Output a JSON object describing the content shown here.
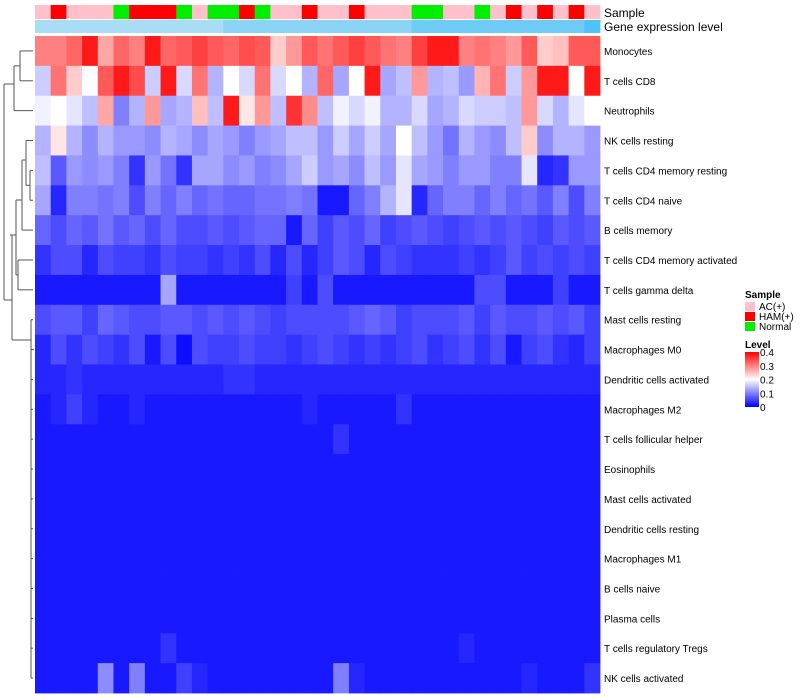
{
  "chart_data": {
    "type": "heatmap",
    "title": "",
    "value_range": [
      0,
      0.4
    ],
    "annotation_tracks": [
      "Sample",
      "Gene expression level"
    ],
    "rows": [
      "Monocytes",
      "T cells CD8",
      "Neutrophils",
      "NK cells resting",
      "T cells CD4 memory resting",
      "T cells CD4 naive",
      "B cells memory",
      "T cells CD4 memory activated",
      "T cells gamma delta",
      "Mast cells resting",
      "Macrophages M0",
      "Dendritic cells activated",
      "Macrophages M2",
      "T cells follicular helper",
      "Eosinophils",
      "Mast cells activated",
      "Dendritic cells resting",
      "Macrophages M1",
      "B cells naive",
      "Plasma cells",
      "T cells regulatory  Tregs",
      "NK cells activated"
    ],
    "sample_groups": [
      "AC",
      "HAM",
      "AC",
      "AC",
      "AC",
      "Normal",
      "HAM",
      "HAM",
      "HAM",
      "Normal",
      "AC",
      "Normal",
      "Normal",
      "HAM",
      "Normal",
      "AC",
      "AC",
      "HAM",
      "AC",
      "AC",
      "HAM",
      "AC",
      "AC",
      "AC",
      "Normal",
      "Normal",
      "AC",
      "AC",
      "Normal",
      "AC",
      "HAM",
      "AC",
      "HAM",
      "AC",
      "HAM",
      "AC"
    ],
    "expression_level_track": [
      0.4,
      0.4,
      0.4,
      0.4,
      0.4,
      0.4,
      0.4,
      0.4,
      0.4,
      0.4,
      0.4,
      0.4,
      0.45,
      0.45,
      0.45,
      0.45,
      0.45,
      0.45,
      0.45,
      0.45,
      0.45,
      0.45,
      0.45,
      0.45,
      0.5,
      0.5,
      0.5,
      0.5,
      0.5,
      0.5,
      0.5,
      0.5,
      0.5,
      0.5,
      0.5,
      0.55
    ],
    "values": [
      [
        0.3,
        0.3,
        0.32,
        0.38,
        0.27,
        0.32,
        0.3,
        0.38,
        0.32,
        0.33,
        0.35,
        0.33,
        0.32,
        0.34,
        0.33,
        0.24,
        0.28,
        0.33,
        0.31,
        0.33,
        0.35,
        0.33,
        0.31,
        0.3,
        0.35,
        0.38,
        0.38,
        0.3,
        0.31,
        0.3,
        0.28,
        0.33,
        0.24,
        0.25,
        0.33,
        0.33
      ],
      [
        0.16,
        0.31,
        0.24,
        0.2,
        0.33,
        0.38,
        0.34,
        0.16,
        0.38,
        0.17,
        0.31,
        0.14,
        0.2,
        0.17,
        0.31,
        0.17,
        0.2,
        0.14,
        0.32,
        0.13,
        0.2,
        0.38,
        0.13,
        0.15,
        0.28,
        0.14,
        0.15,
        0.12,
        0.26,
        0.31,
        0.16,
        0.28,
        0.38,
        0.38,
        0.2,
        0.38
      ],
      [
        0.19,
        0.2,
        0.18,
        0.15,
        0.27,
        0.1,
        0.14,
        0.28,
        0.13,
        0.14,
        0.25,
        0.15,
        0.38,
        0.22,
        0.28,
        0.15,
        0.36,
        0.29,
        0.15,
        0.19,
        0.17,
        0.19,
        0.14,
        0.14,
        0.17,
        0.13,
        0.14,
        0.17,
        0.16,
        0.16,
        0.15,
        0.28,
        0.17,
        0.14,
        0.18,
        0.2
      ],
      [
        0.14,
        0.22,
        0.14,
        0.11,
        0.14,
        0.12,
        0.12,
        0.11,
        0.14,
        0.13,
        0.11,
        0.13,
        0.12,
        0.1,
        0.12,
        0.13,
        0.15,
        0.15,
        0.12,
        0.16,
        0.13,
        0.16,
        0.13,
        0.2,
        0.15,
        0.12,
        0.09,
        0.14,
        0.12,
        0.11,
        0.15,
        0.24,
        0.11,
        0.14,
        0.14,
        0.12
      ],
      [
        0.15,
        0.07,
        0.12,
        0.11,
        0.12,
        0.1,
        0.04,
        0.12,
        0.09,
        0.04,
        0.13,
        0.13,
        0.11,
        0.12,
        0.1,
        0.11,
        0.13,
        0.16,
        0.12,
        0.13,
        0.11,
        0.15,
        0.12,
        0.18,
        0.13,
        0.12,
        0.1,
        0.12,
        0.12,
        0.1,
        0.1,
        0.18,
        0.03,
        0.04,
        0.12,
        0.12
      ],
      [
        0.13,
        0.03,
        0.1,
        0.1,
        0.09,
        0.1,
        0.06,
        0.1,
        0.08,
        0.1,
        0.08,
        0.09,
        0.08,
        0.08,
        0.09,
        0.09,
        0.1,
        0.09,
        0.02,
        0.02,
        0.08,
        0.1,
        0.14,
        0.18,
        0.03,
        0.08,
        0.1,
        0.1,
        0.08,
        0.1,
        0.08,
        0.09,
        0.07,
        0.1,
        0.06,
        0.1
      ],
      [
        0.08,
        0.06,
        0.08,
        0.07,
        0.09,
        0.07,
        0.08,
        0.06,
        0.08,
        0.06,
        0.06,
        0.07,
        0.06,
        0.07,
        0.08,
        0.08,
        0.02,
        0.08,
        0.05,
        0.07,
        0.06,
        0.08,
        0.05,
        0.06,
        0.07,
        0.06,
        0.05,
        0.06,
        0.07,
        0.06,
        0.07,
        0.06,
        0.05,
        0.07,
        0.06,
        0.07
      ],
      [
        0.04,
        0.06,
        0.06,
        0.03,
        0.06,
        0.05,
        0.05,
        0.04,
        0.06,
        0.05,
        0.05,
        0.04,
        0.05,
        0.04,
        0.06,
        0.03,
        0.06,
        0.03,
        0.05,
        0.07,
        0.06,
        0.03,
        0.06,
        0.05,
        0.04,
        0.04,
        0.04,
        0.05,
        0.04,
        0.05,
        0.07,
        0.05,
        0.06,
        0.05,
        0.06,
        0.05
      ],
      [
        0.02,
        0.02,
        0.02,
        0.02,
        0.02,
        0.02,
        0.02,
        0.02,
        0.13,
        0.02,
        0.02,
        0.02,
        0.02,
        0.02,
        0.02,
        0.02,
        0.05,
        0.02,
        0.06,
        0.02,
        0.02,
        0.02,
        0.02,
        0.02,
        0.02,
        0.02,
        0.02,
        0.02,
        0.06,
        0.06,
        0.02,
        0.02,
        0.02,
        0.05,
        0.02,
        0.02
      ],
      [
        0.06,
        0.07,
        0.07,
        0.05,
        0.08,
        0.07,
        0.06,
        0.06,
        0.07,
        0.07,
        0.06,
        0.07,
        0.06,
        0.07,
        0.06,
        0.05,
        0.06,
        0.06,
        0.06,
        0.06,
        0.07,
        0.08,
        0.07,
        0.05,
        0.06,
        0.06,
        0.06,
        0.07,
        0.05,
        0.07,
        0.06,
        0.06,
        0.07,
        0.06,
        0.07,
        0.05
      ],
      [
        0.03,
        0.06,
        0.04,
        0.06,
        0.05,
        0.04,
        0.06,
        0.02,
        0.06,
        0.01,
        0.06,
        0.05,
        0.05,
        0.06,
        0.05,
        0.05,
        0.04,
        0.05,
        0.06,
        0.05,
        0.04,
        0.05,
        0.04,
        0.05,
        0.06,
        0.04,
        0.05,
        0.06,
        0.04,
        0.06,
        0.02,
        0.05,
        0.06,
        0.04,
        0.03,
        0.05
      ],
      [
        0.03,
        0.03,
        0.04,
        0.03,
        0.03,
        0.03,
        0.03,
        0.03,
        0.03,
        0.03,
        0.03,
        0.03,
        0.04,
        0.04,
        0.03,
        0.03,
        0.03,
        0.03,
        0.03,
        0.03,
        0.03,
        0.03,
        0.03,
        0.03,
        0.03,
        0.03,
        0.03,
        0.03,
        0.03,
        0.03,
        0.03,
        0.03,
        0.03,
        0.03,
        0.03,
        0.03
      ],
      [
        0.02,
        0.03,
        0.05,
        0.03,
        0.02,
        0.02,
        0.03,
        0.02,
        0.02,
        0.02,
        0.02,
        0.02,
        0.02,
        0.02,
        0.02,
        0.02,
        0.02,
        0.03,
        0.02,
        0.02,
        0.02,
        0.02,
        0.02,
        0.04,
        0.02,
        0.02,
        0.02,
        0.02,
        0.02,
        0.02,
        0.02,
        0.02,
        0.02,
        0.02,
        0.02,
        0.02
      ],
      [
        0.02,
        0.02,
        0.02,
        0.02,
        0.02,
        0.02,
        0.02,
        0.02,
        0.02,
        0.02,
        0.02,
        0.02,
        0.02,
        0.02,
        0.02,
        0.02,
        0.02,
        0.02,
        0.02,
        0.04,
        0.02,
        0.02,
        0.02,
        0.02,
        0.02,
        0.02,
        0.02,
        0.02,
        0.02,
        0.02,
        0.02,
        0.02,
        0.02,
        0.02,
        0.02,
        0.02
      ],
      [
        0.02,
        0.02,
        0.02,
        0.02,
        0.02,
        0.02,
        0.02,
        0.02,
        0.02,
        0.02,
        0.02,
        0.02,
        0.02,
        0.02,
        0.02,
        0.02,
        0.02,
        0.02,
        0.02,
        0.02,
        0.02,
        0.02,
        0.02,
        0.02,
        0.02,
        0.02,
        0.02,
        0.02,
        0.02,
        0.02,
        0.02,
        0.02,
        0.02,
        0.02,
        0.02,
        0.02
      ],
      [
        0.02,
        0.02,
        0.02,
        0.02,
        0.02,
        0.02,
        0.02,
        0.02,
        0.02,
        0.02,
        0.02,
        0.02,
        0.02,
        0.02,
        0.02,
        0.02,
        0.02,
        0.02,
        0.02,
        0.02,
        0.02,
        0.02,
        0.02,
        0.02,
        0.02,
        0.02,
        0.02,
        0.02,
        0.02,
        0.02,
        0.02,
        0.02,
        0.02,
        0.02,
        0.02,
        0.02
      ],
      [
        0.02,
        0.02,
        0.02,
        0.02,
        0.02,
        0.02,
        0.02,
        0.02,
        0.02,
        0.02,
        0.02,
        0.02,
        0.02,
        0.02,
        0.02,
        0.02,
        0.02,
        0.02,
        0.02,
        0.02,
        0.02,
        0.02,
        0.02,
        0.02,
        0.02,
        0.02,
        0.02,
        0.02,
        0.02,
        0.02,
        0.02,
        0.02,
        0.02,
        0.02,
        0.02,
        0.02
      ],
      [
        0.02,
        0.02,
        0.02,
        0.02,
        0.02,
        0.02,
        0.02,
        0.02,
        0.02,
        0.02,
        0.02,
        0.02,
        0.02,
        0.02,
        0.02,
        0.02,
        0.02,
        0.02,
        0.02,
        0.02,
        0.02,
        0.02,
        0.02,
        0.02,
        0.02,
        0.02,
        0.02,
        0.02,
        0.02,
        0.02,
        0.02,
        0.02,
        0.02,
        0.02,
        0.02,
        0.02
      ],
      [
        0.02,
        0.02,
        0.02,
        0.02,
        0.02,
        0.02,
        0.02,
        0.02,
        0.02,
        0.02,
        0.02,
        0.02,
        0.02,
        0.02,
        0.02,
        0.02,
        0.02,
        0.02,
        0.02,
        0.02,
        0.02,
        0.02,
        0.02,
        0.02,
        0.02,
        0.02,
        0.02,
        0.02,
        0.02,
        0.02,
        0.02,
        0.02,
        0.02,
        0.02,
        0.02,
        0.02
      ],
      [
        0.02,
        0.02,
        0.02,
        0.02,
        0.02,
        0.02,
        0.02,
        0.02,
        0.02,
        0.02,
        0.02,
        0.02,
        0.02,
        0.02,
        0.02,
        0.02,
        0.02,
        0.02,
        0.02,
        0.02,
        0.02,
        0.02,
        0.02,
        0.02,
        0.02,
        0.02,
        0.02,
        0.02,
        0.02,
        0.02,
        0.02,
        0.02,
        0.02,
        0.02,
        0.02,
        0.02
      ],
      [
        0.02,
        0.02,
        0.02,
        0.02,
        0.02,
        0.02,
        0.02,
        0.02,
        0.04,
        0.02,
        0.02,
        0.02,
        0.02,
        0.02,
        0.02,
        0.02,
        0.02,
        0.02,
        0.02,
        0.02,
        0.02,
        0.02,
        0.02,
        0.02,
        0.02,
        0.02,
        0.02,
        0.03,
        0.02,
        0.02,
        0.02,
        0.02,
        0.02,
        0.02,
        0.02,
        0.02
      ],
      [
        0.02,
        0.02,
        0.02,
        0.02,
        0.11,
        0.02,
        0.1,
        0.02,
        0.02,
        0.05,
        0.03,
        0.02,
        0.02,
        0.02,
        0.02,
        0.02,
        0.02,
        0.02,
        0.02,
        0.1,
        0.03,
        0.02,
        0.02,
        0.02,
        0.02,
        0.02,
        0.02,
        0.02,
        0.02,
        0.02,
        0.02,
        0.03,
        0.02,
        0.02,
        0.02,
        0.04
      ]
    ],
    "legend": {
      "sample_title": "Sample",
      "sample_entries": [
        {
          "key": "AC",
          "label": "AC(+)",
          "color": "#FFC0CB"
        },
        {
          "key": "HAM",
          "label": "HAM(+)",
          "color": "#FF0000"
        },
        {
          "key": "Normal",
          "label": "Normal",
          "color": "#00EE00"
        }
      ],
      "level_title": "Level",
      "level_ticks": [
        {
          "value": 0.4,
          "label": "0.4"
        },
        {
          "value": 0.3,
          "label": "0.3"
        },
        {
          "value": 0.2,
          "label": "0.2"
        },
        {
          "value": 0.1,
          "label": "0.1"
        },
        {
          "value": 0,
          "label": "0"
        }
      ]
    },
    "colors": {
      "low": "#0000FF",
      "mid": "#FFFFFF",
      "high": "#FF0000",
      "expression_light": "#A9DCF5",
      "expression_dark": "#4FC3F7",
      "dendrogram": "#555555"
    }
  }
}
